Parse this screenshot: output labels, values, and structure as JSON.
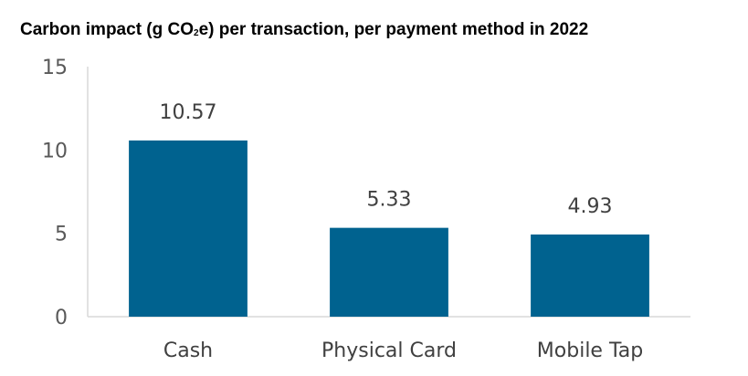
{
  "chart_data": {
    "type": "bar",
    "title_main": "Carbon impact (g CO",
    "title_sub": "2",
    "title_rest": "e) per transaction, per payment method in 2022",
    "categories": [
      "Cash",
      "Physical Card",
      "Mobile Tap"
    ],
    "values": [
      10.57,
      5.33,
      4.93
    ],
    "data_labels": [
      "10.57",
      "5.33",
      "4.93"
    ],
    "yticks": [
      0,
      5,
      10,
      15
    ],
    "ylim": [
      0,
      15
    ],
    "xlabel": "",
    "ylabel": "",
    "bar_color": "#00628f",
    "axis_color": "#d9d9d9"
  }
}
